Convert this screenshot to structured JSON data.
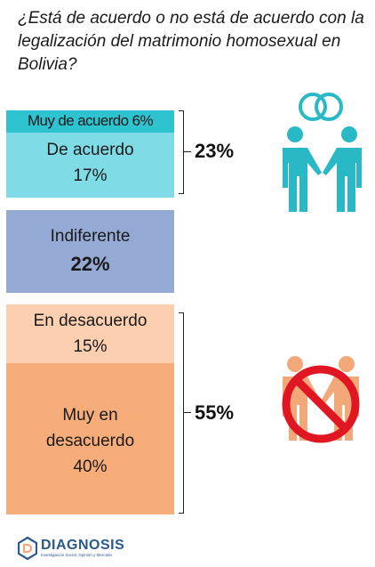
{
  "chart_data": {
    "type": "bar",
    "title": "¿Está de acuerdo o no está de acuerdo con la legalización del matrimonio homosexual en Bolivia?",
    "categories": [
      "Muy de acuerdo",
      "De acuerdo",
      "Indiferente",
      "En desacuerdo",
      "Muy en desacuerdo"
    ],
    "values": [
      6,
      17,
      22,
      15,
      40
    ],
    "unit": "%",
    "colors": [
      "#2fc3cf",
      "#7fdce6",
      "#94a9d3",
      "#fbcfb0",
      "#f6ad79"
    ],
    "segments": [
      {
        "label": "Muy de acuerdo",
        "value_label": "6%"
      },
      {
        "label": "De acuerdo",
        "value_label": "17%"
      },
      {
        "label": "Indiferente",
        "value_label": "22%"
      },
      {
        "label": "En desacuerdo",
        "value_label": "15%"
      },
      {
        "label": "Muy en desacuerdo",
        "value_label": "40%"
      }
    ],
    "groups": [
      {
        "total_label": "23%",
        "color": "#29b8c6"
      },
      {
        "total_label": "55%",
        "color": "#f2a878"
      }
    ]
  },
  "brand": {
    "name": "DIAGNOSIS",
    "tagline": "Investigación Social, Opinión y Mercado",
    "color": "#2b5a8a"
  },
  "icons": {
    "agree": "couple-with-rings-icon",
    "disagree": "couple-prohibited-icon"
  }
}
